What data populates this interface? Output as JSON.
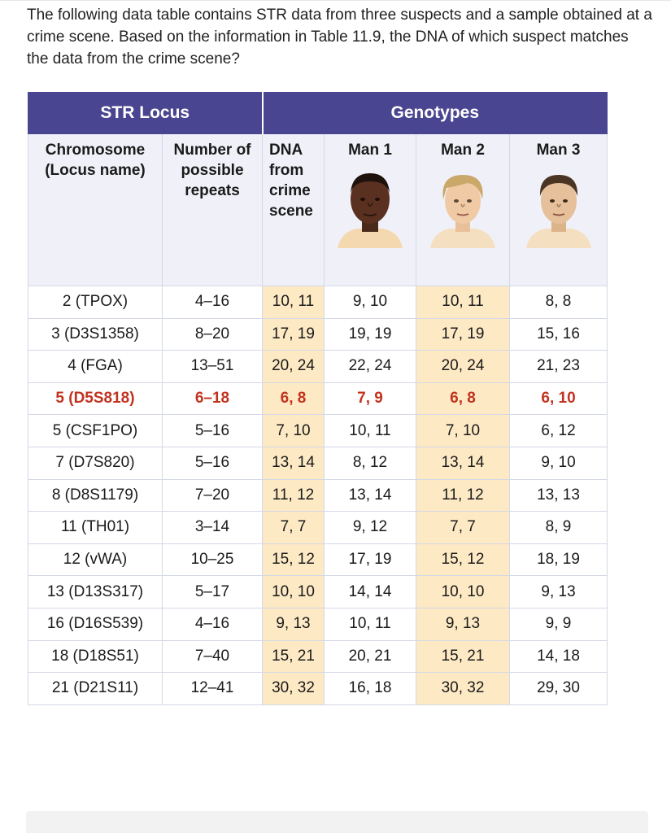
{
  "question": "The following data table contains STR data from three suspects and a sample obtained at a crime scene. Based on the information in Table 11.9, the DNA of which suspect matches the data from the crime scene?",
  "table": {
    "header": {
      "str_locus": "STR Locus",
      "genotypes": "Genotypes"
    },
    "subheader": {
      "chromosome_line1": "Chromosome",
      "chromosome_line2": "(Locus name)",
      "repeats_line1": "Number of",
      "repeats_line2": "possible",
      "repeats_line3": "repeats",
      "dna_line1": "DNA",
      "dna_line2": "from",
      "dna_line3": "crime",
      "dna_line4": "scene",
      "man1": "Man 1",
      "man2": "Man 2",
      "man3": "Man 3"
    },
    "rows": [
      {
        "locus": "2 (TPOX)",
        "repeats": "4–16",
        "dna": "10, 11",
        "man1": "9, 10",
        "man2": "10, 11",
        "man3": "8, 8"
      },
      {
        "locus": "3 (D3S1358)",
        "repeats": "8–20",
        "dna": "17, 19",
        "man1": "19, 19",
        "man2": "17, 19",
        "man3": "15, 16"
      },
      {
        "locus": "4 (FGA)",
        "repeats": "13–51",
        "dna": "20, 24",
        "man1": "22, 24",
        "man2": "20, 24",
        "man3": "21, 23"
      },
      {
        "locus": "5 (D5S818)",
        "repeats": "6–18",
        "dna": "6, 8",
        "man1": "7, 9",
        "man2": "6, 8",
        "man3": "6, 10",
        "highlight": true
      },
      {
        "locus": "5 (CSF1PO)",
        "repeats": "5–16",
        "dna": "7, 10",
        "man1": "10, 11",
        "man2": "7, 10",
        "man3": "6, 12"
      },
      {
        "locus": "7 (D7S820)",
        "repeats": "5–16",
        "dna": "13, 14",
        "man1": "8, 12",
        "man2": "13, 14",
        "man3": "9, 10"
      },
      {
        "locus": "8 (D8S1179)",
        "repeats": "7–20",
        "dna": "11, 12",
        "man1": "13, 14",
        "man2": "11, 12",
        "man3": "13, 13"
      },
      {
        "locus": "11 (TH01)",
        "repeats": "3–14",
        "dna": "7, 7",
        "man1": "9, 12",
        "man2": "7, 7",
        "man3": "8, 9"
      },
      {
        "locus": "12 (vWA)",
        "repeats": "10–25",
        "dna": "15, 12",
        "man1": "17, 19",
        "man2": "15, 12",
        "man3": "18, 19"
      },
      {
        "locus": "13 (D13S317)",
        "repeats": "5–17",
        "dna": "10, 10",
        "man1": "14, 14",
        "man2": "10, 10",
        "man3": "9, 13"
      },
      {
        "locus": "16 (D16S539)",
        "repeats": "4–16",
        "dna": "9, 13",
        "man1": "10, 11",
        "man2": "9, 13",
        "man3": "9, 9"
      },
      {
        "locus": "18 (D18S51)",
        "repeats": "7–40",
        "dna": "15, 21",
        "man1": "20, 21",
        "man2": "15, 21",
        "man3": "14, 18"
      },
      {
        "locus": "21 (D21S11)",
        "repeats": "12–41",
        "dna": "30, 32",
        "man1": "16, 18",
        "man2": "30, 32",
        "man3": "29, 30"
      }
    ]
  },
  "colors": {
    "header_bg": "#4a4590",
    "subheader_bg": "#f0f1f8",
    "highlight_col_bg": "#fde9c4",
    "highlight_text": "#c2331f"
  }
}
